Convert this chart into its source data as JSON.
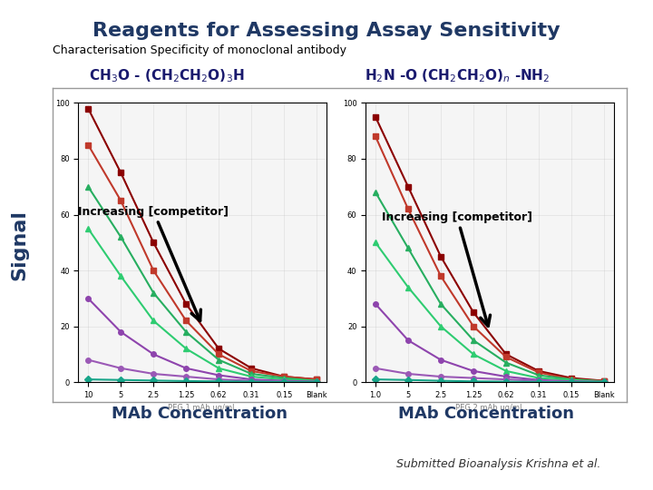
{
  "title": "Reagents for Assessing Assay Sensitivity",
  "subtitle": "Characterisation Specificity of monoclonal antibody",
  "formula_left": "CH$_3$O - (CH$_2$CH$_2$O)$_3$H",
  "formula_right": "H$_2$N -O (CH$_2$CH$_2$O)$_n$ -NH$_2$",
  "xlabel": "MAb Concentration",
  "ylabel": "Signal",
  "arrow_label": "Increasing [competitor]",
  "footnote": "Submitted Bioanalysis Krishna et al.",
  "background_color": "#ffffff",
  "panel_bg": "#f0f0f0",
  "title_color": "#1f3864",
  "subtitle_color": "#000000",
  "xlabel_color": "#1f3864",
  "ylabel_color": "#1f3864",
  "x_ticks_left": [
    "10",
    "5",
    "2.5",
    "1.25",
    "0.62",
    "0.31",
    "0.15",
    "Blank"
  ],
  "x_ticks_right": [
    "1.0",
    "5",
    "2.5",
    "1.25",
    "0.62",
    "0.31",
    "0.15",
    "Blank"
  ],
  "x_label_small_left": "PEG 1 mAb ug/mL",
  "x_label_small_right": "PEG 2 mAb ug/mL",
  "curves_left": {
    "curve1": [
      98,
      75,
      50,
      28,
      12,
      5,
      2,
      1
    ],
    "curve2": [
      85,
      65,
      40,
      22,
      10,
      4,
      2,
      1
    ],
    "curve3": [
      70,
      52,
      32,
      18,
      8,
      3,
      1.5,
      0.5
    ],
    "curve4": [
      55,
      38,
      22,
      12,
      5,
      2,
      1,
      0.5
    ],
    "curve5": [
      30,
      18,
      10,
      5,
      2.5,
      1,
      0.5,
      0.2
    ],
    "curve6": [
      8,
      5,
      3,
      2,
      1,
      0.5,
      0.3,
      0.1
    ],
    "curve7": [
      1,
      0.8,
      0.6,
      0.4,
      0.3,
      0.2,
      0.1,
      0.05
    ]
  },
  "curves_right": {
    "curve1": [
      95,
      70,
      45,
      25,
      10,
      4,
      1.5,
      0.5
    ],
    "curve2": [
      88,
      62,
      38,
      20,
      9,
      3.5,
      1,
      0.5
    ],
    "curve3": [
      68,
      48,
      28,
      15,
      7,
      2.5,
      1,
      0.3
    ],
    "curve4": [
      50,
      34,
      20,
      10,
      4,
      1.5,
      0.8,
      0.2
    ],
    "curve5": [
      28,
      15,
      8,
      4,
      2,
      0.8,
      0.3,
      0.1
    ],
    "curve6": [
      5,
      3,
      2,
      1.5,
      1,
      0.5,
      0.2,
      0.05
    ],
    "curve7": [
      1,
      0.8,
      0.5,
      0.3,
      0.2,
      0.1,
      0.05,
      0.02
    ]
  },
  "curve_colors": [
    "#8b0000",
    "#c0392b",
    "#27ae60",
    "#2ecc71",
    "#8e44ad",
    "#9b59b6",
    "#17a589"
  ],
  "curve_markers": [
    "s",
    "s",
    "^",
    "^",
    "o",
    "o",
    "D"
  ],
  "ylim": [
    0,
    100
  ]
}
